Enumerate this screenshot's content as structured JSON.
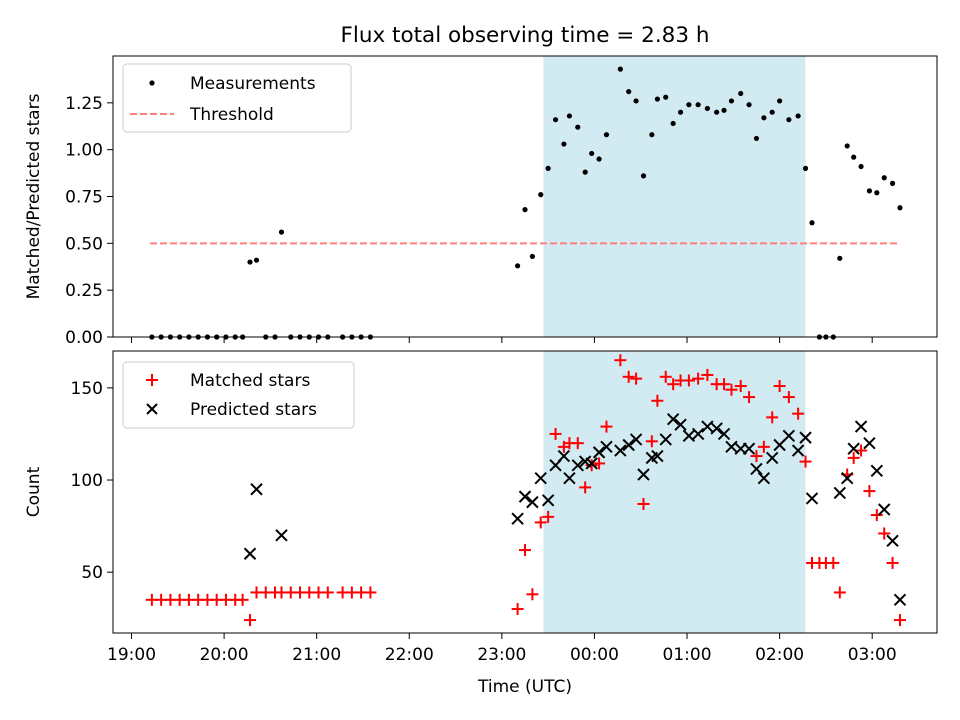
{
  "chart_data": {
    "title": "Flux total observing time = 2.83 h",
    "xlabel": "Time (UTC)",
    "xlim": [
      18.8,
      27.7
    ],
    "x_ticks": [
      {
        "value": 19,
        "label": "19:00"
      },
      {
        "value": 20,
        "label": "20:00"
      },
      {
        "value": 21,
        "label": "21:00"
      },
      {
        "value": 22,
        "label": "22:00"
      },
      {
        "value": 23,
        "label": "23:00"
      },
      {
        "value": 24,
        "label": "00:00"
      },
      {
        "value": 25,
        "label": "01:00"
      },
      {
        "value": 26,
        "label": "02:00"
      },
      {
        "value": 27,
        "label": "03:00"
      }
    ],
    "shaded_window": {
      "start": 23.45,
      "end": 26.28,
      "color": "#add8e6"
    },
    "panels": [
      {
        "type": "scatter",
        "ylabel": "Matched/Predicted stars",
        "ylim": [
          0,
          1.5
        ],
        "y_ticks": [
          {
            "value": 0,
            "label": "0.00"
          },
          {
            "value": 0.25,
            "label": "0.25"
          },
          {
            "value": 0.5,
            "label": "0.50"
          },
          {
            "value": 0.75,
            "label": "0.75"
          },
          {
            "value": 1.0,
            "label": "1.00"
          },
          {
            "value": 1.25,
            "label": "1.25"
          }
        ],
        "legend": {
          "placement": "top-left",
          "entries": [
            "Measurements",
            "Threshold"
          ]
        },
        "threshold": {
          "name": "Threshold",
          "value": 0.5,
          "x_range": [
            19.2,
            27.3
          ],
          "color": "#ff8080"
        },
        "series": [
          {
            "name": "Measurements",
            "color": "#000000",
            "points": [
              [
                19.22,
                0
              ],
              [
                19.32,
                0
              ],
              [
                19.42,
                0
              ],
              [
                19.52,
                0
              ],
              [
                19.62,
                0
              ],
              [
                19.72,
                0
              ],
              [
                19.82,
                0
              ],
              [
                19.92,
                0
              ],
              [
                20.02,
                0
              ],
              [
                20.12,
                0
              ],
              [
                20.2,
                0
              ],
              [
                20.28,
                0.4
              ],
              [
                20.35,
                0.41
              ],
              [
                20.45,
                0
              ],
              [
                20.55,
                0
              ],
              [
                20.62,
                0.56
              ],
              [
                20.72,
                0
              ],
              [
                20.82,
                0
              ],
              [
                20.92,
                0
              ],
              [
                21.02,
                0
              ],
              [
                21.12,
                0
              ],
              [
                21.28,
                0
              ],
              [
                21.38,
                0
              ],
              [
                21.48,
                0
              ],
              [
                21.58,
                0
              ],
              [
                23.17,
                0.38
              ],
              [
                23.25,
                0.68
              ],
              [
                23.33,
                0.43
              ],
              [
                23.42,
                0.76
              ],
              [
                23.5,
                0.9
              ],
              [
                23.58,
                1.16
              ],
              [
                23.67,
                1.03
              ],
              [
                23.73,
                1.18
              ],
              [
                23.82,
                1.12
              ],
              [
                23.9,
                0.88
              ],
              [
                23.97,
                0.98
              ],
              [
                24.05,
                0.95
              ],
              [
                24.13,
                1.08
              ],
              [
                24.28,
                1.43
              ],
              [
                24.37,
                1.31
              ],
              [
                24.45,
                1.26
              ],
              [
                24.53,
                0.86
              ],
              [
                24.62,
                1.08
              ],
              [
                24.68,
                1.27
              ],
              [
                24.77,
                1.28
              ],
              [
                24.85,
                1.14
              ],
              [
                24.93,
                1.2
              ],
              [
                25.02,
                1.24
              ],
              [
                25.12,
                1.24
              ],
              [
                25.22,
                1.22
              ],
              [
                25.32,
                1.2
              ],
              [
                25.4,
                1.21
              ],
              [
                25.48,
                1.26
              ],
              [
                25.58,
                1.3
              ],
              [
                25.67,
                1.24
              ],
              [
                25.75,
                1.06
              ],
              [
                25.83,
                1.17
              ],
              [
                25.92,
                1.2
              ],
              [
                26.0,
                1.26
              ],
              [
                26.1,
                1.16
              ],
              [
                26.2,
                1.18
              ],
              [
                26.28,
                0.9
              ],
              [
                26.35,
                0.61
              ],
              [
                26.43,
                0
              ],
              [
                26.5,
                0
              ],
              [
                26.58,
                0
              ],
              [
                26.65,
                0.42
              ],
              [
                26.73,
                1.02
              ],
              [
                26.8,
                0.96
              ],
              [
                26.88,
                0.91
              ],
              [
                26.97,
                0.78
              ],
              [
                27.05,
                0.77
              ],
              [
                27.13,
                0.85
              ],
              [
                27.22,
                0.82
              ],
              [
                27.3,
                0.69
              ]
            ]
          }
        ]
      },
      {
        "type": "scatter",
        "ylabel": "Count",
        "ylim": [
          17,
          170
        ],
        "y_ticks": [
          {
            "value": 50,
            "label": "50"
          },
          {
            "value": 100,
            "label": "100"
          },
          {
            "value": 150,
            "label": "150"
          }
        ],
        "legend": {
          "placement": "top-left",
          "entries": [
            "Matched stars",
            "Predicted stars"
          ]
        },
        "series": [
          {
            "name": "Matched stars",
            "marker": "plus",
            "color": "#ff0000",
            "points": [
              [
                19.22,
                35
              ],
              [
                19.32,
                35
              ],
              [
                19.42,
                35
              ],
              [
                19.52,
                35
              ],
              [
                19.62,
                35
              ],
              [
                19.72,
                35
              ],
              [
                19.82,
                35
              ],
              [
                19.92,
                35
              ],
              [
                20.02,
                35
              ],
              [
                20.12,
                35
              ],
              [
                20.2,
                35
              ],
              [
                20.28,
                24
              ],
              [
                20.35,
                39
              ],
              [
                20.45,
                39
              ],
              [
                20.55,
                39
              ],
              [
                20.62,
                39
              ],
              [
                20.72,
                39
              ],
              [
                20.82,
                39
              ],
              [
                20.92,
                39
              ],
              [
                21.02,
                39
              ],
              [
                21.12,
                39
              ],
              [
                21.28,
                39
              ],
              [
                21.38,
                39
              ],
              [
                21.48,
                39
              ],
              [
                21.58,
                39
              ],
              [
                23.17,
                30
              ],
              [
                23.25,
                62
              ],
              [
                23.33,
                38
              ],
              [
                23.42,
                77
              ],
              [
                23.5,
                80
              ],
              [
                23.58,
                125
              ],
              [
                23.67,
                118
              ],
              [
                23.73,
                120
              ],
              [
                23.82,
                120
              ],
              [
                23.9,
                96
              ],
              [
                23.97,
                108
              ],
              [
                24.05,
                109
              ],
              [
                24.13,
                129
              ],
              [
                24.28,
                165
              ],
              [
                24.37,
                156
              ],
              [
                24.45,
                155
              ],
              [
                24.53,
                87
              ],
              [
                24.62,
                121
              ],
              [
                24.68,
                143
              ],
              [
                24.77,
                156
              ],
              [
                24.85,
                152
              ],
              [
                24.93,
                154
              ],
              [
                25.02,
                154
              ],
              [
                25.12,
                155
              ],
              [
                25.22,
                157
              ],
              [
                25.32,
                152
              ],
              [
                25.4,
                152
              ],
              [
                25.48,
                149
              ],
              [
                25.58,
                151
              ],
              [
                25.67,
                145
              ],
              [
                25.75,
                113
              ],
              [
                25.83,
                118
              ],
              [
                25.92,
                134
              ],
              [
                26.0,
                151
              ],
              [
                26.1,
                145
              ],
              [
                26.2,
                136
              ],
              [
                26.28,
                110
              ],
              [
                26.35,
                55
              ],
              [
                26.43,
                55
              ],
              [
                26.5,
                55
              ],
              [
                26.58,
                55
              ],
              [
                26.65,
                39
              ],
              [
                26.73,
                103
              ],
              [
                26.8,
                112
              ],
              [
                26.88,
                116
              ],
              [
                26.97,
                94
              ],
              [
                27.05,
                81
              ],
              [
                27.13,
                71
              ],
              [
                27.22,
                55
              ],
              [
                27.3,
                24
              ]
            ]
          },
          {
            "name": "Predicted stars",
            "marker": "x",
            "color": "#000000",
            "points": [
              [
                20.28,
                60
              ],
              [
                20.35,
                95
              ],
              [
                20.62,
                70
              ],
              [
                23.17,
                79
              ],
              [
                23.25,
                91
              ],
              [
                23.33,
                88
              ],
              [
                23.42,
                101
              ],
              [
                23.5,
                89
              ],
              [
                23.58,
                108
              ],
              [
                23.67,
                113
              ],
              [
                23.73,
                101
              ],
              [
                23.82,
                108
              ],
              [
                23.9,
                110
              ],
              [
                23.97,
                109
              ],
              [
                24.05,
                115
              ],
              [
                24.13,
                118
              ],
              [
                24.28,
                116
              ],
              [
                24.37,
                119
              ],
              [
                24.45,
                122
              ],
              [
                24.53,
                103
              ],
              [
                24.62,
                112
              ],
              [
                24.68,
                113
              ],
              [
                24.77,
                122
              ],
              [
                24.85,
                133
              ],
              [
                24.93,
                130
              ],
              [
                25.02,
                124
              ],
              [
                25.12,
                125
              ],
              [
                25.22,
                129
              ],
              [
                25.32,
                128
              ],
              [
                25.4,
                125
              ],
              [
                25.48,
                118
              ],
              [
                25.58,
                117
              ],
              [
                25.67,
                117
              ],
              [
                25.75,
                106
              ],
              [
                25.83,
                101
              ],
              [
                25.92,
                112
              ],
              [
                26.0,
                119
              ],
              [
                26.1,
                124
              ],
              [
                26.2,
                116
              ],
              [
                26.28,
                123
              ],
              [
                26.35,
                90
              ],
              [
                26.65,
                93
              ],
              [
                26.73,
                101
              ],
              [
                26.8,
                117
              ],
              [
                26.88,
                129
              ],
              [
                26.97,
                120
              ],
              [
                27.05,
                105
              ],
              [
                27.13,
                84
              ],
              [
                27.22,
                67
              ],
              [
                27.3,
                35
              ]
            ]
          }
        ]
      }
    ]
  }
}
